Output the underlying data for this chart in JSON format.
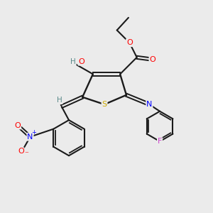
{
  "bg_color": "#ebebeb",
  "atom_colors": {
    "C": "#000000",
    "H": "#5a8a8a",
    "O": "#ff0000",
    "N": "#0000ff",
    "S": "#ccaa00",
    "F": "#cc44cc",
    "HO": "#5a8a8a"
  },
  "bond_color": "#1a1a1a",
  "title": ""
}
